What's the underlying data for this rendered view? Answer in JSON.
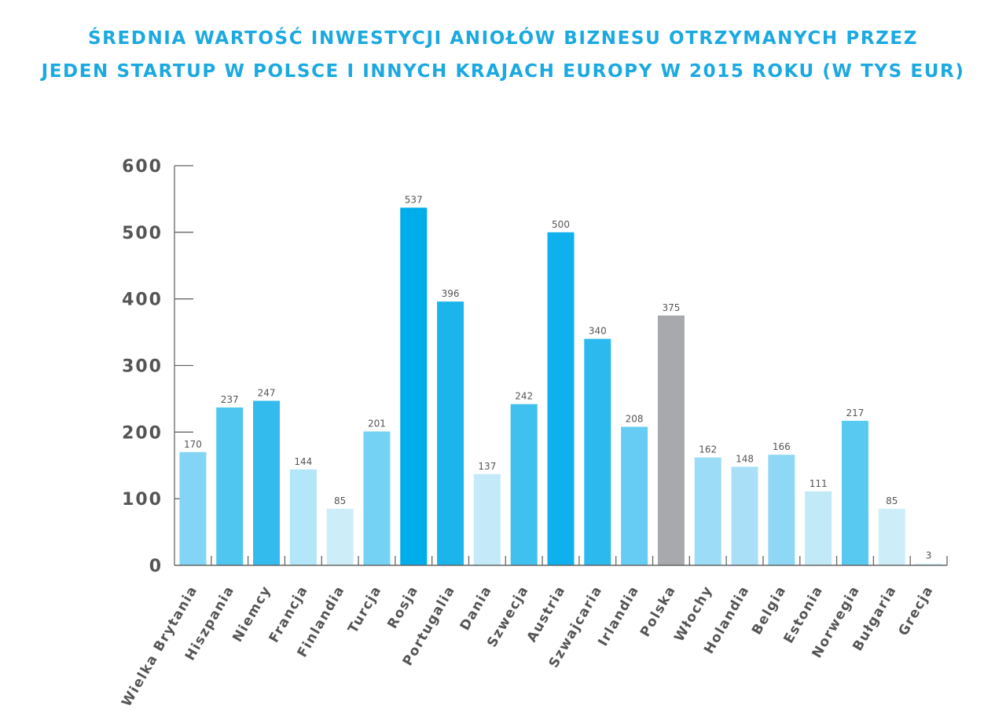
{
  "chart_data": {
    "type": "bar",
    "title_line1": "ŚREDNIA WARTOŚĆ INWESTYCJI ANIOŁÓW BIZNESU OTRZYMANYCH PRZEZ",
    "title_line2": "JEDEN STARTUP W POLSCE I INNYCH KRAJACH EUROPY W 2015 ROKU (W TYS EUR)",
    "xlabel": "",
    "ylabel": "",
    "ylim": [
      0,
      600
    ],
    "yticks": [
      0,
      100,
      200,
      300,
      400,
      500,
      600
    ],
    "grid": false,
    "categories": [
      "Wielka Brytania",
      "Hiszpania",
      "Niemcy",
      "Francja",
      "Finlandia",
      "Turcja",
      "Rosja",
      "Portugalia",
      "Dania",
      "Szwecja",
      "Austria",
      "Szwajcaria",
      "Irlandia",
      "Polska",
      "Włochy",
      "Holandia",
      "Belgia",
      "Estonia",
      "Norwegia",
      "Bułgaria",
      "Grecja"
    ],
    "values": [
      170,
      237,
      247,
      144,
      85,
      201,
      537,
      396,
      137,
      242,
      500,
      340,
      208,
      375,
      162,
      148,
      166,
      111,
      217,
      85,
      3
    ],
    "colors": [
      "#84d5f5",
      "#4fc6f0",
      "#33bbee",
      "#b3e6f8",
      "#cdeef9",
      "#74d2f4",
      "#00adeb",
      "#1bb5ec",
      "#c4eaf9",
      "#40c0ef",
      "#0eb1ed",
      "#2bb9ee",
      "#66ccf3",
      "#a7a9ac",
      "#9cdcf6",
      "#a9e0f7",
      "#8fd8f5",
      "#c2e9f8",
      "#58caf2",
      "#cdeef9",
      "#d8f2fb"
    ],
    "title_color": "#1ba9e1",
    "highlight": "Polska"
  }
}
